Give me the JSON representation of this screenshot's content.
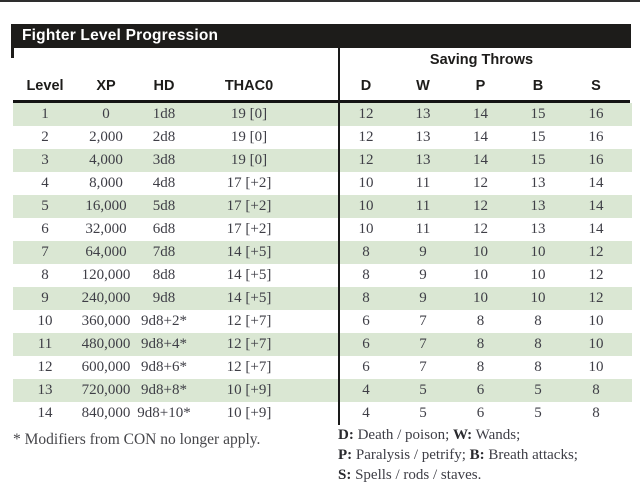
{
  "title": "Fighter Level Progression",
  "table": {
    "saving_throws_header": "Saving Throws",
    "columns": [
      "Level",
      "XP",
      "HD",
      "THAC0",
      "D",
      "W",
      "P",
      "B",
      "S"
    ],
    "rows": [
      [
        "1",
        "0",
        "1d8",
        "19 [0]",
        "12",
        "13",
        "14",
        "15",
        "16"
      ],
      [
        "2",
        "2,000",
        "2d8",
        "19 [0]",
        "12",
        "13",
        "14",
        "15",
        "16"
      ],
      [
        "3",
        "4,000",
        "3d8",
        "19 [0]",
        "12",
        "13",
        "14",
        "15",
        "16"
      ],
      [
        "4",
        "8,000",
        "4d8",
        "17 [+2]",
        "10",
        "11",
        "12",
        "13",
        "14"
      ],
      [
        "5",
        "16,000",
        "5d8",
        "17 [+2]",
        "10",
        "11",
        "12",
        "13",
        "14"
      ],
      [
        "6",
        "32,000",
        "6d8",
        "17 [+2]",
        "10",
        "11",
        "12",
        "13",
        "14"
      ],
      [
        "7",
        "64,000",
        "7d8",
        "14 [+5]",
        "8",
        "9",
        "10",
        "10",
        "12"
      ],
      [
        "8",
        "120,000",
        "8d8",
        "14 [+5]",
        "8",
        "9",
        "10",
        "10",
        "12"
      ],
      [
        "9",
        "240,000",
        "9d8",
        "14 [+5]",
        "8",
        "9",
        "10",
        "10",
        "12"
      ],
      [
        "10",
        "360,000",
        "9d8+2*",
        "12 [+7]",
        "6",
        "7",
        "8",
        "8",
        "10"
      ],
      [
        "11",
        "480,000",
        "9d8+4*",
        "12 [+7]",
        "6",
        "7",
        "8",
        "8",
        "10"
      ],
      [
        "12",
        "600,000",
        "9d8+6*",
        "12 [+7]",
        "6",
        "7",
        "8",
        "8",
        "10"
      ],
      [
        "13",
        "720,000",
        "9d8+8*",
        "10 [+9]",
        "4",
        "5",
        "6",
        "5",
        "8"
      ],
      [
        "14",
        "840,000",
        "9d8+10*",
        "10 [+9]",
        "4",
        "5",
        "6",
        "5",
        "8"
      ]
    ]
  },
  "footnote": "* Modifiers from CON no longer apply.",
  "legend_lines": [
    [
      {
        "b": "D:"
      },
      {
        "t": " Death / poison; "
      },
      {
        "b": "W:"
      },
      {
        "t": " Wands;"
      }
    ],
    [
      {
        "b": "P:"
      },
      {
        "t": " Paralysis / petrify; "
      },
      {
        "b": "B:"
      },
      {
        "t": " Breath attacks;"
      }
    ],
    [
      {
        "b": "S:"
      },
      {
        "t": " Spells / rods / staves."
      }
    ]
  ],
  "colors": {
    "stripe_green": "#dae7d3",
    "title_bar_black": "#1d1c1a",
    "body_text": "#3e3e46"
  }
}
